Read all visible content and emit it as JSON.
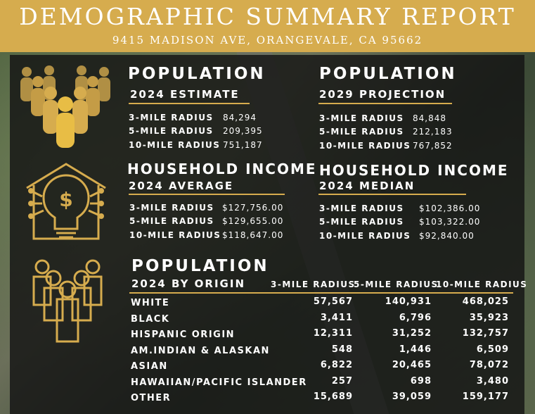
{
  "header": {
    "title": "DEMOGRAPHIC SUMMARY REPORT",
    "address": "9415 MADISON AVE, ORANGEVALE, CA 95662"
  },
  "colors": {
    "accent": "#d6ac4e",
    "panel": "#141414"
  },
  "pop2024": {
    "title": "POPULATION",
    "subtitle": "2024 ESTIMATE",
    "rows": [
      {
        "label": "3-MILE RADIUS",
        "value": "84,294"
      },
      {
        "label": "5-MILE RADIUS",
        "value": "209,395"
      },
      {
        "label": "10-MILE RADIUS",
        "value": "751,187"
      }
    ]
  },
  "pop2029": {
    "title": "POPULATION",
    "subtitle": "2029 PROJECTION",
    "rows": [
      {
        "label": "3-MILE RADIUS",
        "value": "84,848"
      },
      {
        "label": "5-MILE RADIUS",
        "value": "212,183"
      },
      {
        "label": "10-MILE RADIUS",
        "value": "767,852"
      }
    ]
  },
  "hhAvg": {
    "title": "HOUSEHOLD INCOME",
    "subtitle": "2024 AVERAGE",
    "rows": [
      {
        "label": "3-MILE RADIUS",
        "value": "$127,756.00"
      },
      {
        "label": "5-MILE RADIUS",
        "value": "$129,655.00"
      },
      {
        "label": "10-MILE RADIUS",
        "value": "$118,647.00"
      }
    ]
  },
  "hhMed": {
    "title": "HOUSEHOLD INCOME",
    "subtitle": "2024 MEDIAN",
    "rows": [
      {
        "label": "3-MILE RADIUS",
        "value": "$102,386.00"
      },
      {
        "label": "5-MILE RADIUS",
        "value": "$103,322.00"
      },
      {
        "label": "10-MILE RADIUS",
        "value": "$92,840.00"
      }
    ]
  },
  "origin": {
    "title": "POPULATION",
    "subtitle": "2024 BY ORIGIN",
    "columns": [
      "3-MILE RADIUS",
      "5-MILE RADIUS",
      "10-MILE RADIUS"
    ],
    "rows": [
      {
        "label": "WHITE",
        "v3": "57,567",
        "v5": "140,931",
        "v10": "468,025"
      },
      {
        "label": "BLACK",
        "v3": "3,411",
        "v5": "6,796",
        "v10": "35,923"
      },
      {
        "label": "HISPANIC ORIGIN",
        "v3": "12,311",
        "v5": "31,252",
        "v10": "132,757"
      },
      {
        "label": "AM.INDIAN & ALASKAN",
        "v3": "548",
        "v5": "1,446",
        "v10": "6,509"
      },
      {
        "label": "ASIAN",
        "v3": "6,822",
        "v5": "20,465",
        "v10": "78,072"
      },
      {
        "label": "HAWAIIAN/PACIFIC ISLANDER",
        "v3": "257",
        "v5": "698",
        "v10": "3,480"
      },
      {
        "label": "OTHER",
        "v3": "15,689",
        "v5": "39,059",
        "v10": "159,177"
      }
    ]
  }
}
